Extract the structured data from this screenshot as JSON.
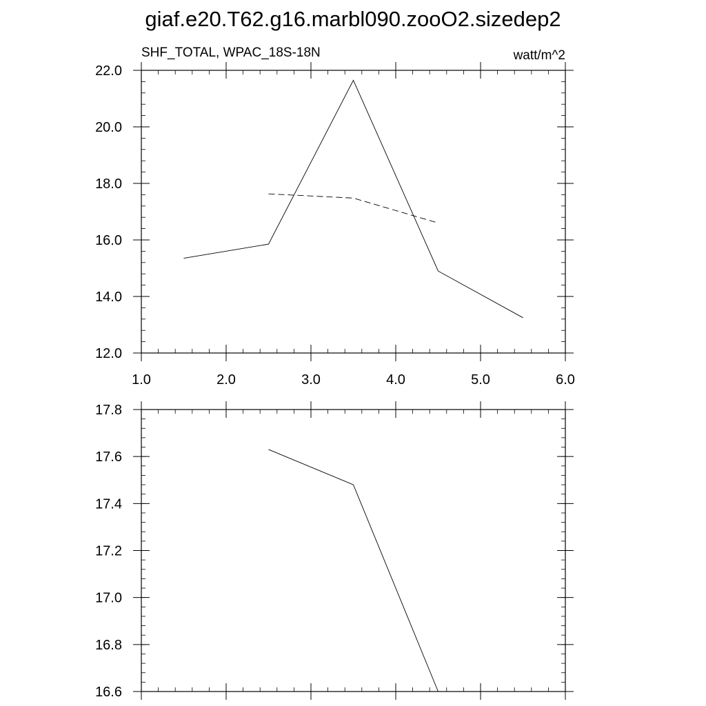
{
  "figure": {
    "title": "giaf.e20.T62.g16.marbl090.zooO2.sizedep2",
    "left_string": "SHF_TOTAL, WPAC_18S-18N",
    "right_string": "watt/m^2"
  },
  "chart_data": [
    {
      "type": "line",
      "xlim": [
        1.0,
        6.0
      ],
      "ylim": [
        12.0,
        22.0
      ],
      "x_ticks": [
        1.0,
        2.0,
        3.0,
        4.0,
        5.0,
        6.0
      ],
      "x_tick_labels": [
        "1.0",
        "2.0",
        "3.0",
        "4.0",
        "5.0",
        "6.0"
      ],
      "y_ticks": [
        12.0,
        14.0,
        16.0,
        18.0,
        20.0,
        22.0
      ],
      "y_tick_labels": [
        "12.0",
        "14.0",
        "16.0",
        "18.0",
        "20.0",
        "22.0"
      ],
      "x_minor_step": 0.2,
      "y_minor_step": 0.4,
      "grid": false,
      "series": [
        {
          "style": "solid",
          "x": [
            1.5,
            2.5,
            3.5,
            4.5,
            5.5
          ],
          "y": [
            15.35,
            15.85,
            21.65,
            14.9,
            13.25
          ]
        },
        {
          "style": "dashed",
          "x": [
            2.5,
            3.5,
            4.5
          ],
          "y": [
            17.63,
            17.48,
            16.6
          ]
        }
      ]
    },
    {
      "type": "line",
      "xlim": [
        1.0,
        6.0
      ],
      "ylim": [
        16.6,
        17.8
      ],
      "x_ticks": [
        1.0,
        2.0,
        3.0,
        4.0,
        5.0,
        6.0
      ],
      "x_tick_labels": [],
      "y_ticks": [
        16.6,
        16.8,
        17.0,
        17.2,
        17.4,
        17.6,
        17.8
      ],
      "y_tick_labels": [
        "16.6",
        "16.8",
        "17.0",
        "17.2",
        "17.4",
        "17.6",
        "17.8"
      ],
      "x_minor_step": 0.2,
      "y_minor_step": 0.04,
      "grid": false,
      "series": [
        {
          "style": "solid",
          "x": [
            2.5,
            3.5,
            4.5
          ],
          "y": [
            17.63,
            17.48,
            16.6
          ]
        }
      ]
    }
  ]
}
